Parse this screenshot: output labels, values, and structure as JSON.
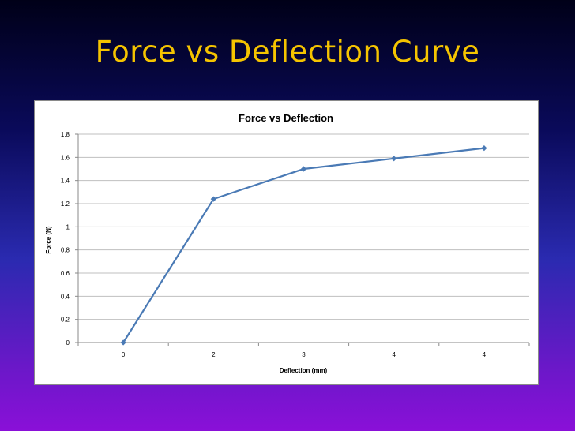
{
  "slide": {
    "title": "Force vs Deflection Curve"
  },
  "colors": {
    "series": "#4a7ab5",
    "gridline": "#bfbfbf",
    "axis": "#8a8a8a",
    "title": "#f5c400"
  },
  "chart_data": {
    "type": "line",
    "title": "Force vs Deflection",
    "xlabel": "Deflection (mm)",
    "ylabel": "Force (N)",
    "categories": [
      "0",
      "2",
      "3",
      "4",
      "4"
    ],
    "series": [
      {
        "values": [
          0,
          1.24,
          1.5,
          1.59,
          1.68
        ]
      }
    ],
    "ylim": [
      0,
      1.8
    ],
    "yticks": [
      "0",
      "0.2",
      "0.4",
      "0.6",
      "0.8",
      "1",
      "1.2",
      "1.4",
      "1.6",
      "1.8"
    ],
    "grid": true,
    "legend": "none",
    "marker": "diamond"
  }
}
